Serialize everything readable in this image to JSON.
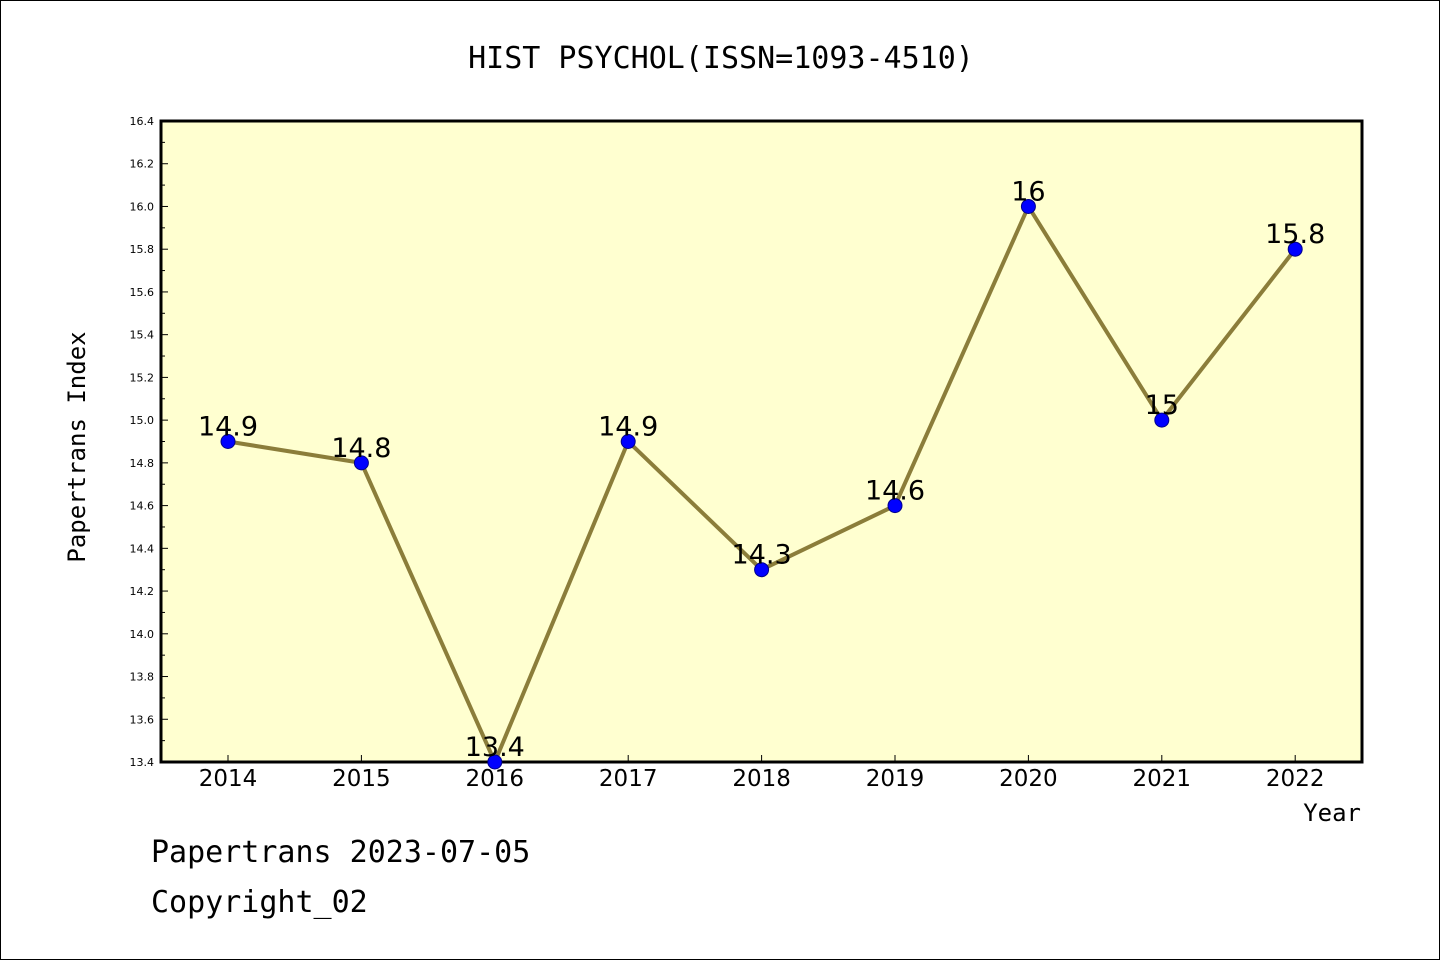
{
  "chart_data": {
    "type": "line",
    "title": "HIST PSYCHOL(ISSN=1093-4510)",
    "xlabel": "Year",
    "ylabel": "Papertrans Index",
    "categories": [
      "2014",
      "2015",
      "2016",
      "2017",
      "2018",
      "2019",
      "2020",
      "2021",
      "2022"
    ],
    "series": [
      {
        "values": [
          14.9,
          14.8,
          13.4,
          14.9,
          14.3,
          14.6,
          16.0,
          15.0,
          15.8
        ]
      }
    ],
    "data_labels": [
      "14.9",
      "14.8",
      "13.4",
      "14.9",
      "14.3",
      "14.6",
      "16",
      "15",
      "15.8"
    ],
    "ylim": [
      13.4,
      16.4
    ],
    "yticks": [
      "13.4",
      "13.6",
      "13.8",
      "14.0",
      "14.2",
      "14.4",
      "14.6",
      "14.8",
      "15.0",
      "15.2",
      "15.4",
      "15.6",
      "15.8",
      "16.0",
      "16.2",
      "16.4"
    ],
    "grid": false,
    "colors": {
      "plot_background": "#ffffd0",
      "line": "#8b7d3a",
      "marker": "#0000ff"
    }
  },
  "footer": {
    "date_text": "Papertrans 2023-07-05",
    "copyright_text": "Copyright_02"
  }
}
